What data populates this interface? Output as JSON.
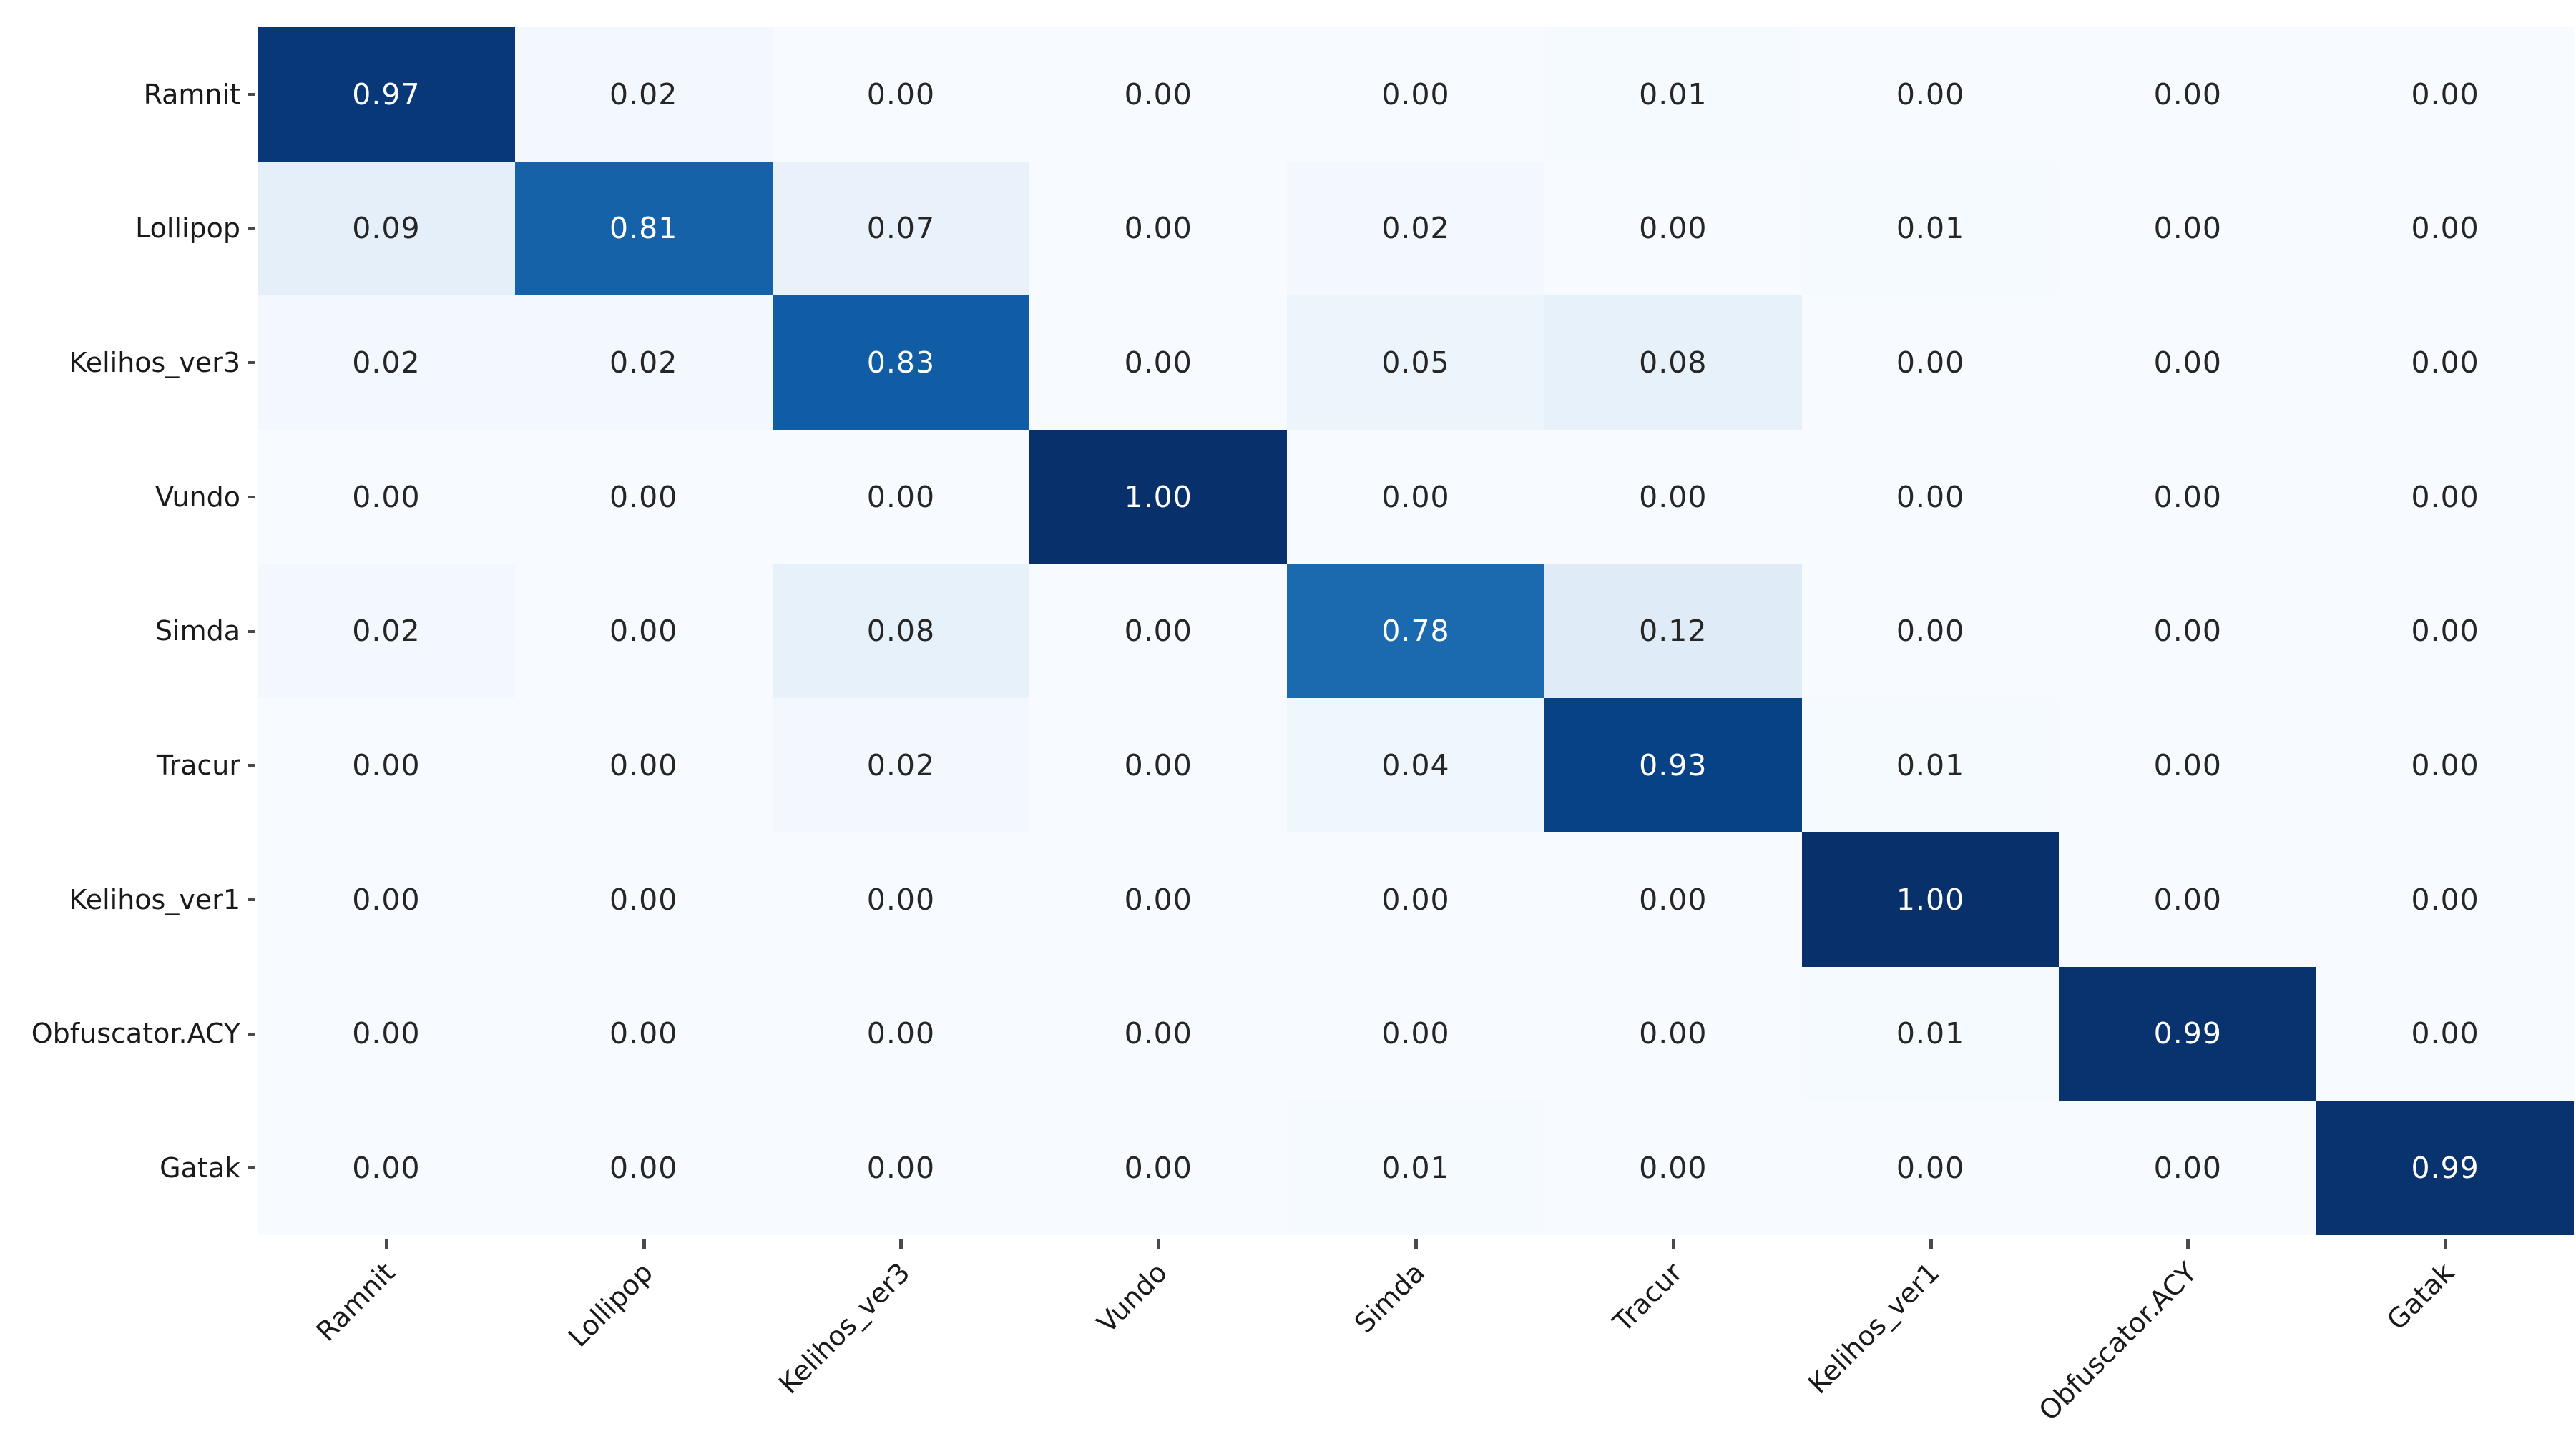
{
  "figure": {
    "background_color": "#ffffff"
  },
  "chart_data": {
    "type": "heatmap",
    "title": "",
    "xlabel": "",
    "ylabel": "",
    "legend": "none",
    "grid": false,
    "x_tick_rotation_deg": 45,
    "categories_x": [
      "Ramnit",
      "Lollipop",
      "Kelihos_ver3",
      "Vundo",
      "Simda",
      "Tracur",
      "Kelihos_ver1",
      "Obfuscator.ACY",
      "Gatak"
    ],
    "categories_y": [
      "Ramnit",
      "Lollipop",
      "Kelihos_ver3",
      "Vundo",
      "Simda",
      "Tracur",
      "Kelihos_ver1",
      "Obfuscator.ACY",
      "Gatak"
    ],
    "matrix": [
      [
        0.97,
        0.02,
        0.0,
        0.0,
        0.0,
        0.01,
        0.0,
        0.0,
        0.0
      ],
      [
        0.09,
        0.81,
        0.07,
        0.0,
        0.02,
        0.0,
        0.01,
        0.0,
        0.0
      ],
      [
        0.02,
        0.02,
        0.83,
        0.0,
        0.05,
        0.08,
        0.0,
        0.0,
        0.0
      ],
      [
        0.0,
        0.0,
        0.0,
        1.0,
        0.0,
        0.0,
        0.0,
        0.0,
        0.0
      ],
      [
        0.02,
        0.0,
        0.08,
        0.0,
        0.78,
        0.12,
        0.0,
        0.0,
        0.0
      ],
      [
        0.0,
        0.0,
        0.02,
        0.0,
        0.04,
        0.93,
        0.01,
        0.0,
        0.0
      ],
      [
        0.0,
        0.0,
        0.0,
        0.0,
        0.0,
        0.0,
        1.0,
        0.0,
        0.0
      ],
      [
        0.0,
        0.0,
        0.0,
        0.0,
        0.0,
        0.0,
        0.01,
        0.99,
        0.0
      ],
      [
        0.0,
        0.0,
        0.0,
        0.0,
        0.01,
        0.0,
        0.0,
        0.0,
        0.99
      ]
    ],
    "value_decimals": 2,
    "vmin": 0,
    "vmax": 1,
    "colormap": {
      "name": "Blues",
      "stops": [
        "#f7fbff",
        "#deebf7",
        "#c6dbef",
        "#9ecae1",
        "#6baed6",
        "#4292c6",
        "#2171b5",
        "#08519c",
        "#08306b"
      ]
    },
    "annotation_colors": {
      "light_text": "#ffffff",
      "dark_text": "#262626",
      "light_text_threshold": 0.6
    },
    "tick_mark_color": "#4a4a4a",
    "tick_label_color": "#1a1a1a"
  }
}
